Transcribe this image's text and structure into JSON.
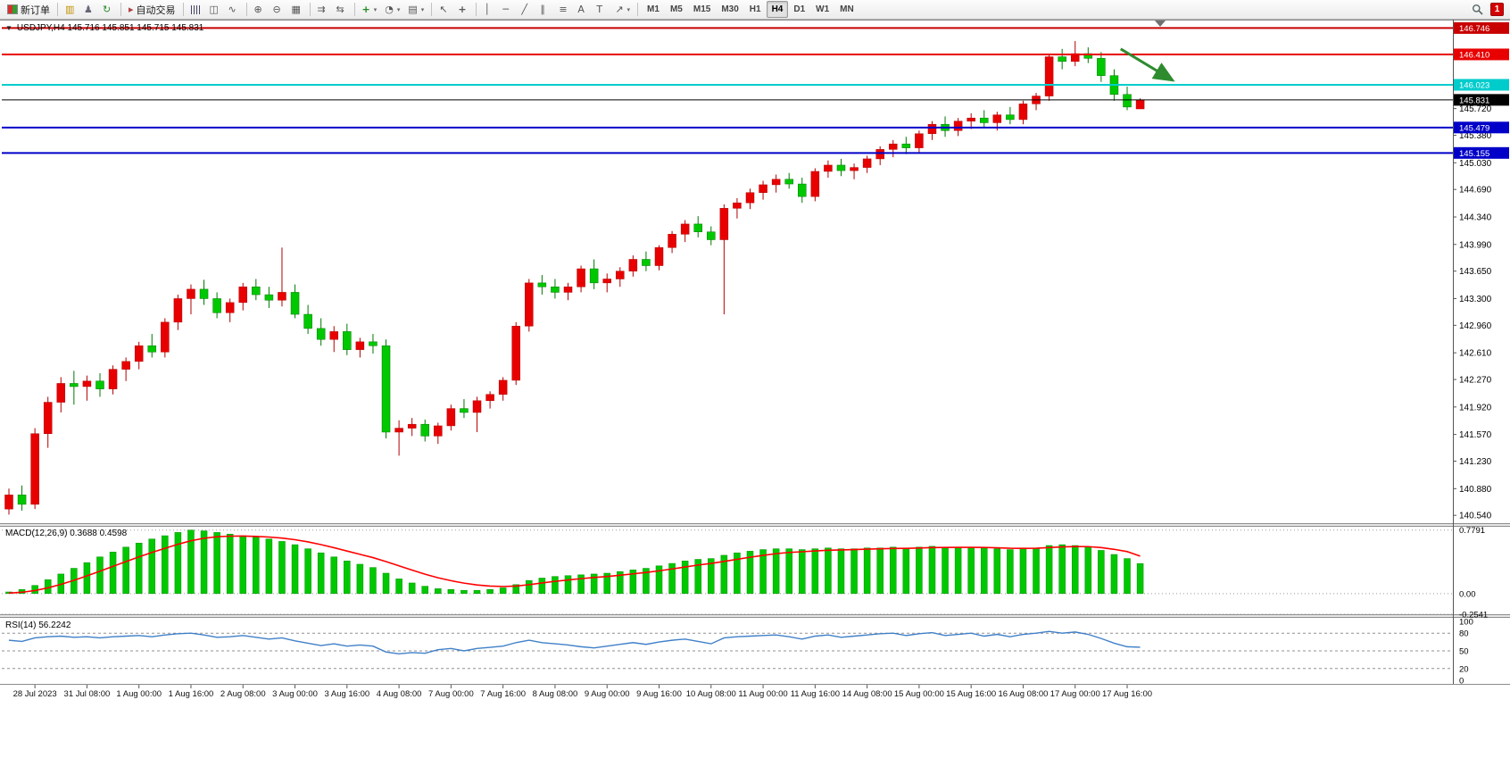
{
  "toolbar": {
    "new_order_label": "新订单",
    "autotrade_label": "自动交易",
    "timeframes": [
      "M1",
      "M5",
      "M15",
      "M30",
      "H1",
      "H4",
      "D1",
      "W1",
      "MN"
    ],
    "active_timeframe": "H4",
    "notification_count": "1"
  },
  "chart": {
    "symbol_period": "USDJPY,H4",
    "ohlc_text": "145.716 145.851 145.715 145.831",
    "macd_label": "MACD(12,26,9) 0.3688 0.4598",
    "rsi_label": "RSI(14) 56.2242"
  },
  "chart_data": {
    "type": "candlestick",
    "symbol": "USDJPY",
    "period": "H4",
    "current_candle": {
      "open": 145.716,
      "high": 145.851,
      "low": 145.715,
      "close": 145.831
    },
    "bid": 145.831,
    "price_axis": {
      "min": 140.44,
      "max": 146.83,
      "ticks": [
        145.72,
        145.38,
        145.03,
        144.69,
        144.34,
        143.99,
        143.65,
        143.3,
        142.96,
        142.61,
        142.27,
        141.92,
        141.57,
        141.23,
        140.88,
        140.54
      ]
    },
    "levels": [
      {
        "price": 146.746,
        "color": "#C80000",
        "width": 2
      },
      {
        "price": 146.41,
        "color": "#E80000",
        "width": 2
      },
      {
        "price": 146.023,
        "color": "#00CCCC",
        "width": 2
      },
      {
        "price": 145.831,
        "color": "#000000",
        "width": 1,
        "role": "bid"
      },
      {
        "price": 145.479,
        "color": "#0000C8",
        "width": 2
      },
      {
        "price": 145.155,
        "color": "#0000C8",
        "width": 2
      }
    ],
    "time_labels": [
      "28 Jul 2023",
      "31 Jul 08:00",
      "1 Aug 00:00",
      "1 Aug 16:00",
      "2 Aug 08:00",
      "3 Aug 00:00",
      "3 Aug 16:00",
      "4 Aug 08:00",
      "7 Aug 00:00",
      "7 Aug 16:00",
      "8 Aug 08:00",
      "9 Aug 00:00",
      "9 Aug 16:00",
      "10 Aug 08:00",
      "11 Aug 00:00",
      "11 Aug 16:00",
      "14 Aug 08:00",
      "15 Aug 00:00",
      "15 Aug 16:00",
      "16 Aug 08:00",
      "17 Aug 00:00",
      "17 Aug 16:00"
    ],
    "candles": [
      [
        140.62,
        140.88,
        140.55,
        140.8
      ],
      [
        140.8,
        140.92,
        140.6,
        140.68
      ],
      [
        140.68,
        141.65,
        140.62,
        141.58
      ],
      [
        141.58,
        142.05,
        141.4,
        141.98
      ],
      [
        141.98,
        142.3,
        141.85,
        142.22
      ],
      [
        142.22,
        142.38,
        141.95,
        142.18
      ],
      [
        142.18,
        142.32,
        142.0,
        142.25
      ],
      [
        142.25,
        142.35,
        142.05,
        142.15
      ],
      [
        142.15,
        142.45,
        142.08,
        142.4
      ],
      [
        142.4,
        142.55,
        142.25,
        142.5
      ],
      [
        142.5,
        142.75,
        142.4,
        142.7
      ],
      [
        142.7,
        142.85,
        142.55,
        142.62
      ],
      [
        142.62,
        143.05,
        142.55,
        143.0
      ],
      [
        143.0,
        143.35,
        142.9,
        143.3
      ],
      [
        143.3,
        143.48,
        143.1,
        143.42
      ],
      [
        143.42,
        143.54,
        143.22,
        143.3
      ],
      [
        143.3,
        143.38,
        143.05,
        143.12
      ],
      [
        143.12,
        143.3,
        143.0,
        143.25
      ],
      [
        143.25,
        143.5,
        143.15,
        143.45
      ],
      [
        143.45,
        143.55,
        143.28,
        143.35
      ],
      [
        143.35,
        143.45,
        143.18,
        143.28
      ],
      [
        143.28,
        143.95,
        143.2,
        143.38
      ],
      [
        143.38,
        143.48,
        143.05,
        143.1
      ],
      [
        143.1,
        143.22,
        142.85,
        142.92
      ],
      [
        142.92,
        143.05,
        142.7,
        142.78
      ],
      [
        142.78,
        142.95,
        142.62,
        142.88
      ],
      [
        142.88,
        142.98,
        142.58,
        142.65
      ],
      [
        142.65,
        142.8,
        142.55,
        142.75
      ],
      [
        142.75,
        142.85,
        142.6,
        142.7
      ],
      [
        142.7,
        142.78,
        141.52,
        141.6
      ],
      [
        141.6,
        141.75,
        141.3,
        141.65
      ],
      [
        141.65,
        141.78,
        141.55,
        141.7
      ],
      [
        141.7,
        141.76,
        141.48,
        141.55
      ],
      [
        141.55,
        141.72,
        141.45,
        141.68
      ],
      [
        141.68,
        141.95,
        141.62,
        141.9
      ],
      [
        141.9,
        142.02,
        141.78,
        141.85
      ],
      [
        141.85,
        142.05,
        141.6,
        142.0
      ],
      [
        142.0,
        142.12,
        141.9,
        142.08
      ],
      [
        142.08,
        142.3,
        142.0,
        142.26
      ],
      [
        142.26,
        143.0,
        142.2,
        142.95
      ],
      [
        142.95,
        143.55,
        142.88,
        143.5
      ],
      [
        143.5,
        143.6,
        143.35,
        143.45
      ],
      [
        143.45,
        143.55,
        143.3,
        143.38
      ],
      [
        143.38,
        143.5,
        143.28,
        143.45
      ],
      [
        143.45,
        143.72,
        143.38,
        143.68
      ],
      [
        143.68,
        143.8,
        143.42,
        143.5
      ],
      [
        143.5,
        143.62,
        143.38,
        143.55
      ],
      [
        143.55,
        143.7,
        143.45,
        143.65
      ],
      [
        143.65,
        143.85,
        143.58,
        143.8
      ],
      [
        143.8,
        143.9,
        143.65,
        143.72
      ],
      [
        143.72,
        143.98,
        143.66,
        143.95
      ],
      [
        143.95,
        144.16,
        143.88,
        144.12
      ],
      [
        144.12,
        144.3,
        144.02,
        144.25
      ],
      [
        144.25,
        144.35,
        144.08,
        144.15
      ],
      [
        144.15,
        144.22,
        143.98,
        144.05
      ],
      [
        144.05,
        144.5,
        143.1,
        144.45
      ],
      [
        144.45,
        144.58,
        144.32,
        144.52
      ],
      [
        144.52,
        144.7,
        144.44,
        144.65
      ],
      [
        144.65,
        144.8,
        144.56,
        144.75
      ],
      [
        144.75,
        144.88,
        144.65,
        144.82
      ],
      [
        144.82,
        144.9,
        144.7,
        144.76
      ],
      [
        144.76,
        144.84,
        144.52,
        144.6
      ],
      [
        144.6,
        144.96,
        144.54,
        144.92
      ],
      [
        144.92,
        145.06,
        144.84,
        145.0
      ],
      [
        145.0,
        145.08,
        144.86,
        144.93
      ],
      [
        144.93,
        145.02,
        144.82,
        144.97
      ],
      [
        144.97,
        145.12,
        144.9,
        145.08
      ],
      [
        145.08,
        145.24,
        145.0,
        145.2
      ],
      [
        145.2,
        145.32,
        145.1,
        145.27
      ],
      [
        145.27,
        145.36,
        145.14,
        145.22
      ],
      [
        145.22,
        145.44,
        145.16,
        145.4
      ],
      [
        145.4,
        145.56,
        145.32,
        145.52
      ],
      [
        145.52,
        145.62,
        145.36,
        145.44
      ],
      [
        145.44,
        145.6,
        145.37,
        145.56
      ],
      [
        145.56,
        145.66,
        145.46,
        145.6
      ],
      [
        145.6,
        145.7,
        145.48,
        145.54
      ],
      [
        145.54,
        145.68,
        145.44,
        145.64
      ],
      [
        145.64,
        145.74,
        145.52,
        145.58
      ],
      [
        145.58,
        145.82,
        145.52,
        145.78
      ],
      [
        145.78,
        145.92,
        145.7,
        145.88
      ],
      [
        145.88,
        146.42,
        145.82,
        146.38
      ],
      [
        146.38,
        146.48,
        146.22,
        146.32
      ],
      [
        146.32,
        146.58,
        146.26,
        146.42
      ],
      [
        146.42,
        146.5,
        146.3,
        146.36
      ],
      [
        146.36,
        146.44,
        146.06,
        146.14
      ],
      [
        146.14,
        146.22,
        145.82,
        145.9
      ],
      [
        145.9,
        146.0,
        145.7,
        145.74
      ],
      [
        145.716,
        145.851,
        145.715,
        145.831
      ]
    ],
    "macd": {
      "params": "12,26,9",
      "current_macd": 0.3688,
      "current_signal": 0.4598,
      "axis_labels": [
        "0.7791",
        "0.00",
        "-0.2541"
      ],
      "histogram": [
        0.02,
        0.05,
        0.1,
        0.17,
        0.24,
        0.31,
        0.38,
        0.45,
        0.51,
        0.57,
        0.62,
        0.67,
        0.71,
        0.75,
        0.7791,
        0.77,
        0.75,
        0.73,
        0.71,
        0.69,
        0.67,
        0.64,
        0.6,
        0.55,
        0.5,
        0.45,
        0.4,
        0.36,
        0.32,
        0.25,
        0.18,
        0.13,
        0.09,
        0.06,
        0.05,
        0.04,
        0.04,
        0.05,
        0.07,
        0.11,
        0.16,
        0.19,
        0.21,
        0.22,
        0.23,
        0.24,
        0.25,
        0.27,
        0.29,
        0.31,
        0.34,
        0.37,
        0.4,
        0.42,
        0.43,
        0.47,
        0.5,
        0.52,
        0.54,
        0.55,
        0.55,
        0.54,
        0.55,
        0.56,
        0.55,
        0.55,
        0.56,
        0.56,
        0.57,
        0.56,
        0.57,
        0.58,
        0.57,
        0.57,
        0.57,
        0.56,
        0.55,
        0.54,
        0.55,
        0.56,
        0.59,
        0.6,
        0.59,
        0.57,
        0.53,
        0.48,
        0.43,
        0.3688
      ],
      "signal": [
        0.005,
        0.016,
        0.037,
        0.07,
        0.113,
        0.162,
        0.217,
        0.275,
        0.334,
        0.393,
        0.45,
        0.505,
        0.556,
        0.605,
        0.648,
        0.679,
        0.697,
        0.705,
        0.706,
        0.702,
        0.694,
        0.681,
        0.661,
        0.634,
        0.601,
        0.563,
        0.522,
        0.482,
        0.441,
        0.393,
        0.34,
        0.288,
        0.238,
        0.194,
        0.158,
        0.128,
        0.106,
        0.092,
        0.087,
        0.092,
        0.109,
        0.13,
        0.15,
        0.167,
        0.183,
        0.197,
        0.21,
        0.225,
        0.242,
        0.259,
        0.279,
        0.302,
        0.326,
        0.35,
        0.37,
        0.395,
        0.421,
        0.446,
        0.469,
        0.49,
        0.505,
        0.513,
        0.523,
        0.532,
        0.536,
        0.54,
        0.545,
        0.549,
        0.554,
        0.555,
        0.559,
        0.564,
        0.566,
        0.567,
        0.567,
        0.566,
        0.562,
        0.556,
        0.555,
        0.556,
        0.564,
        0.573,
        0.577,
        0.576,
        0.564,
        0.543,
        0.515,
        0.4598
      ]
    },
    "rsi": {
      "period": 14,
      "current": 56.2242,
      "axis_labels": [
        100,
        80,
        50,
        20,
        0
      ],
      "level_lines": [
        80,
        50,
        20
      ],
      "values": [
        68,
        66,
        72,
        74,
        75,
        73,
        74,
        72,
        74,
        75,
        76,
        74,
        77,
        79,
        80,
        77,
        73,
        74,
        76,
        73,
        70,
        72,
        67,
        63,
        59,
        62,
        58,
        60,
        58,
        48,
        45,
        47,
        46,
        52,
        54,
        50,
        54,
        56,
        58,
        64,
        68,
        64,
        62,
        60,
        57,
        55,
        58,
        61,
        64,
        61,
        65,
        68,
        70,
        66,
        62,
        72,
        74,
        75,
        76,
        77,
        74,
        70,
        75,
        77,
        73,
        75,
        77,
        79,
        80,
        76,
        79,
        81,
        76,
        78,
        80,
        75,
        78,
        74,
        78,
        80,
        83,
        80,
        82,
        78,
        71,
        63,
        57,
        56.2242
      ]
    },
    "colors": {
      "up_fill": "#E80000",
      "up_stroke": "#B00000",
      "down_fill": "#00C800",
      "down_stroke": "#007800",
      "macd_histogram": "#00C800",
      "macd_signal": "#FF0000",
      "rsi_line": "#4080C8",
      "arrow": "#2E8B2E"
    },
    "arrow_annotation": {
      "from": {
        "candle": 85.5,
        "price": 146.48
      },
      "to": {
        "candle": 89.5,
        "price": 146.08
      }
    }
  }
}
